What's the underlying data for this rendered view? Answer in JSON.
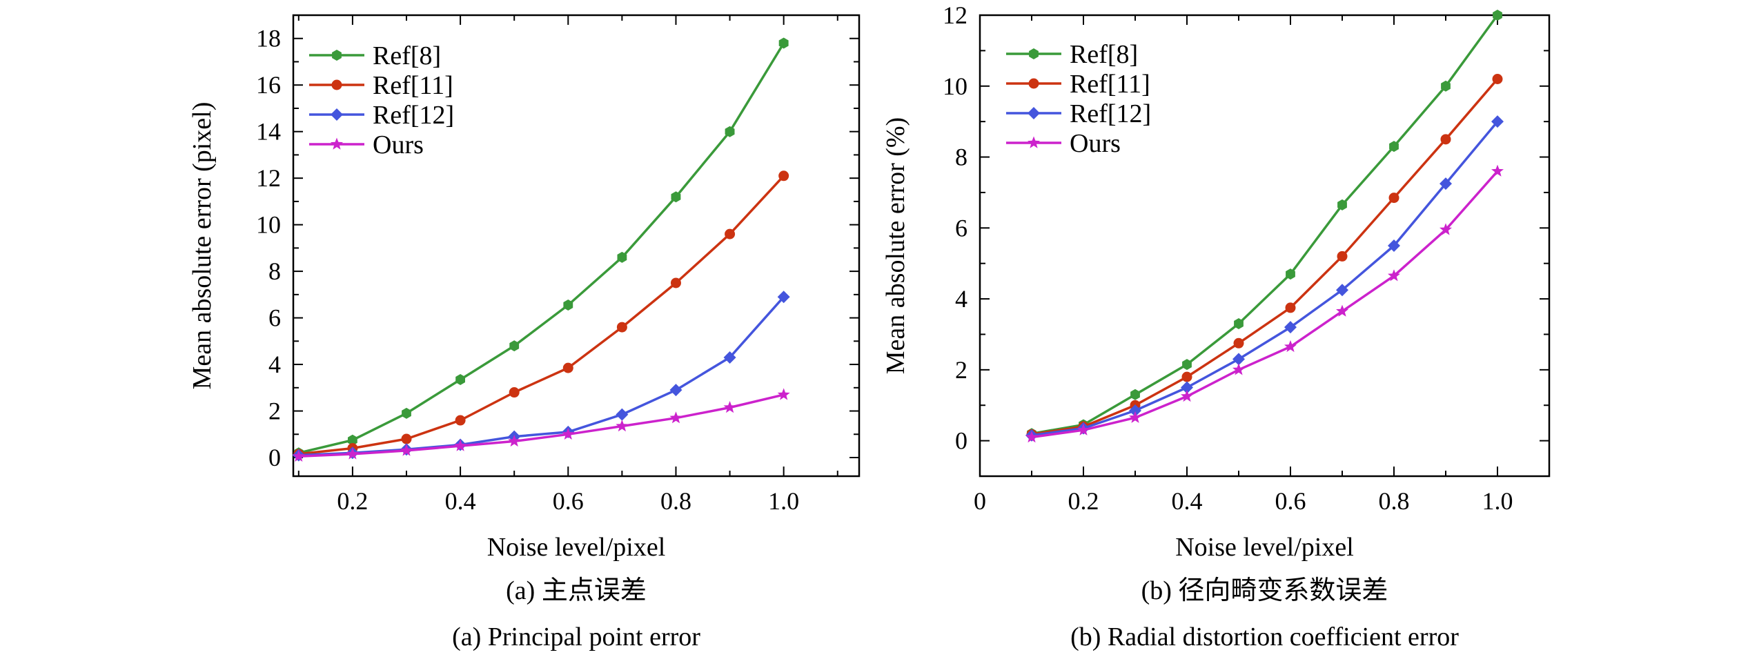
{
  "colors": {
    "Ref[8]": "#3a9a3a",
    "Ref[11]": "#cc3311",
    "Ref[12]": "#4455dd",
    "Ours": "#cc22cc"
  },
  "chart_data": [
    {
      "type": "line",
      "xlabel": "Noise level/pixel",
      "ylabel": "Mean absolute error (pixel)",
      "xlim": [
        0.09,
        1.14
      ],
      "ylim": [
        -0.8,
        19
      ],
      "xticks": [
        0.2,
        0.4,
        0.6,
        0.8,
        1.0
      ],
      "xtick_labels": [
        "0.2",
        "0.4",
        "0.6",
        "0.8",
        "1.0"
      ],
      "yticks": [
        0,
        2,
        4,
        6,
        8,
        10,
        12,
        14,
        16,
        18
      ],
      "ytick_labels": [
        "0",
        "2",
        "4",
        "6",
        "8",
        "10",
        "12",
        "14",
        "16",
        "18"
      ],
      "legend_position": "top-left",
      "grid": false,
      "x": [
        0.1,
        0.2,
        0.3,
        0.4,
        0.5,
        0.6,
        0.7,
        0.8,
        0.9,
        1.0
      ],
      "series": [
        {
          "name": "Ref[8]",
          "marker": "hexagon",
          "values": [
            0.2,
            0.75,
            1.9,
            3.35,
            4.8,
            6.55,
            8.6,
            11.2,
            14.0,
            17.8
          ]
        },
        {
          "name": "Ref[11]",
          "marker": "circle",
          "values": [
            0.15,
            0.4,
            0.8,
            1.6,
            2.8,
            3.85,
            5.6,
            7.5,
            9.6,
            12.1
          ]
        },
        {
          "name": "Ref[12]",
          "marker": "diamond",
          "values": [
            0.1,
            0.2,
            0.35,
            0.55,
            0.9,
            1.1,
            1.85,
            2.9,
            4.3,
            6.9
          ]
        },
        {
          "name": "Ours",
          "marker": "star",
          "values": [
            0.05,
            0.15,
            0.3,
            0.5,
            0.7,
            1.0,
            1.35,
            1.7,
            2.15,
            2.7
          ]
        }
      ],
      "caption_cn": "(a) 主点误差",
      "caption_en": "(a) Principal point error"
    },
    {
      "type": "line",
      "xlabel": "Noise level/pixel",
      "ylabel": "Mean absolute error (%)",
      "xlim": [
        0,
        1.1
      ],
      "ylim": [
        -1,
        12
      ],
      "xticks": [
        0,
        0.2,
        0.4,
        0.6,
        0.8,
        1.0
      ],
      "xtick_labels": [
        "0",
        "0.2",
        "0.4",
        "0.6",
        "0.8",
        "1.0"
      ],
      "yticks": [
        0,
        2,
        4,
        6,
        8,
        10,
        12
      ],
      "ytick_labels": [
        "0",
        "2",
        "4",
        "6",
        "8",
        "10",
        "12"
      ],
      "legend_position": "top-left",
      "grid": false,
      "x": [
        0.1,
        0.2,
        0.3,
        0.4,
        0.5,
        0.6,
        0.7,
        0.8,
        0.9,
        1.0
      ],
      "series": [
        {
          "name": "Ref[8]",
          "marker": "hexagon",
          "values": [
            0.2,
            0.45,
            1.3,
            2.15,
            3.3,
            4.7,
            6.65,
            8.3,
            10.0,
            12.0
          ]
        },
        {
          "name": "Ref[11]",
          "marker": "circle",
          "values": [
            0.18,
            0.4,
            1.0,
            1.8,
            2.75,
            3.75,
            5.2,
            6.85,
            8.5,
            10.2
          ]
        },
        {
          "name": "Ref[12]",
          "marker": "diamond",
          "values": [
            0.15,
            0.35,
            0.85,
            1.5,
            2.3,
            3.2,
            4.25,
            5.5,
            7.25,
            9.0
          ]
        },
        {
          "name": "Ours",
          "marker": "star",
          "values": [
            0.1,
            0.3,
            0.65,
            1.25,
            2.0,
            2.65,
            3.65,
            4.65,
            5.95,
            7.6
          ]
        }
      ],
      "caption_cn": "(b) 径向畸变系数误差",
      "caption_en": "(b) Radial distortion coefficient error"
    }
  ]
}
